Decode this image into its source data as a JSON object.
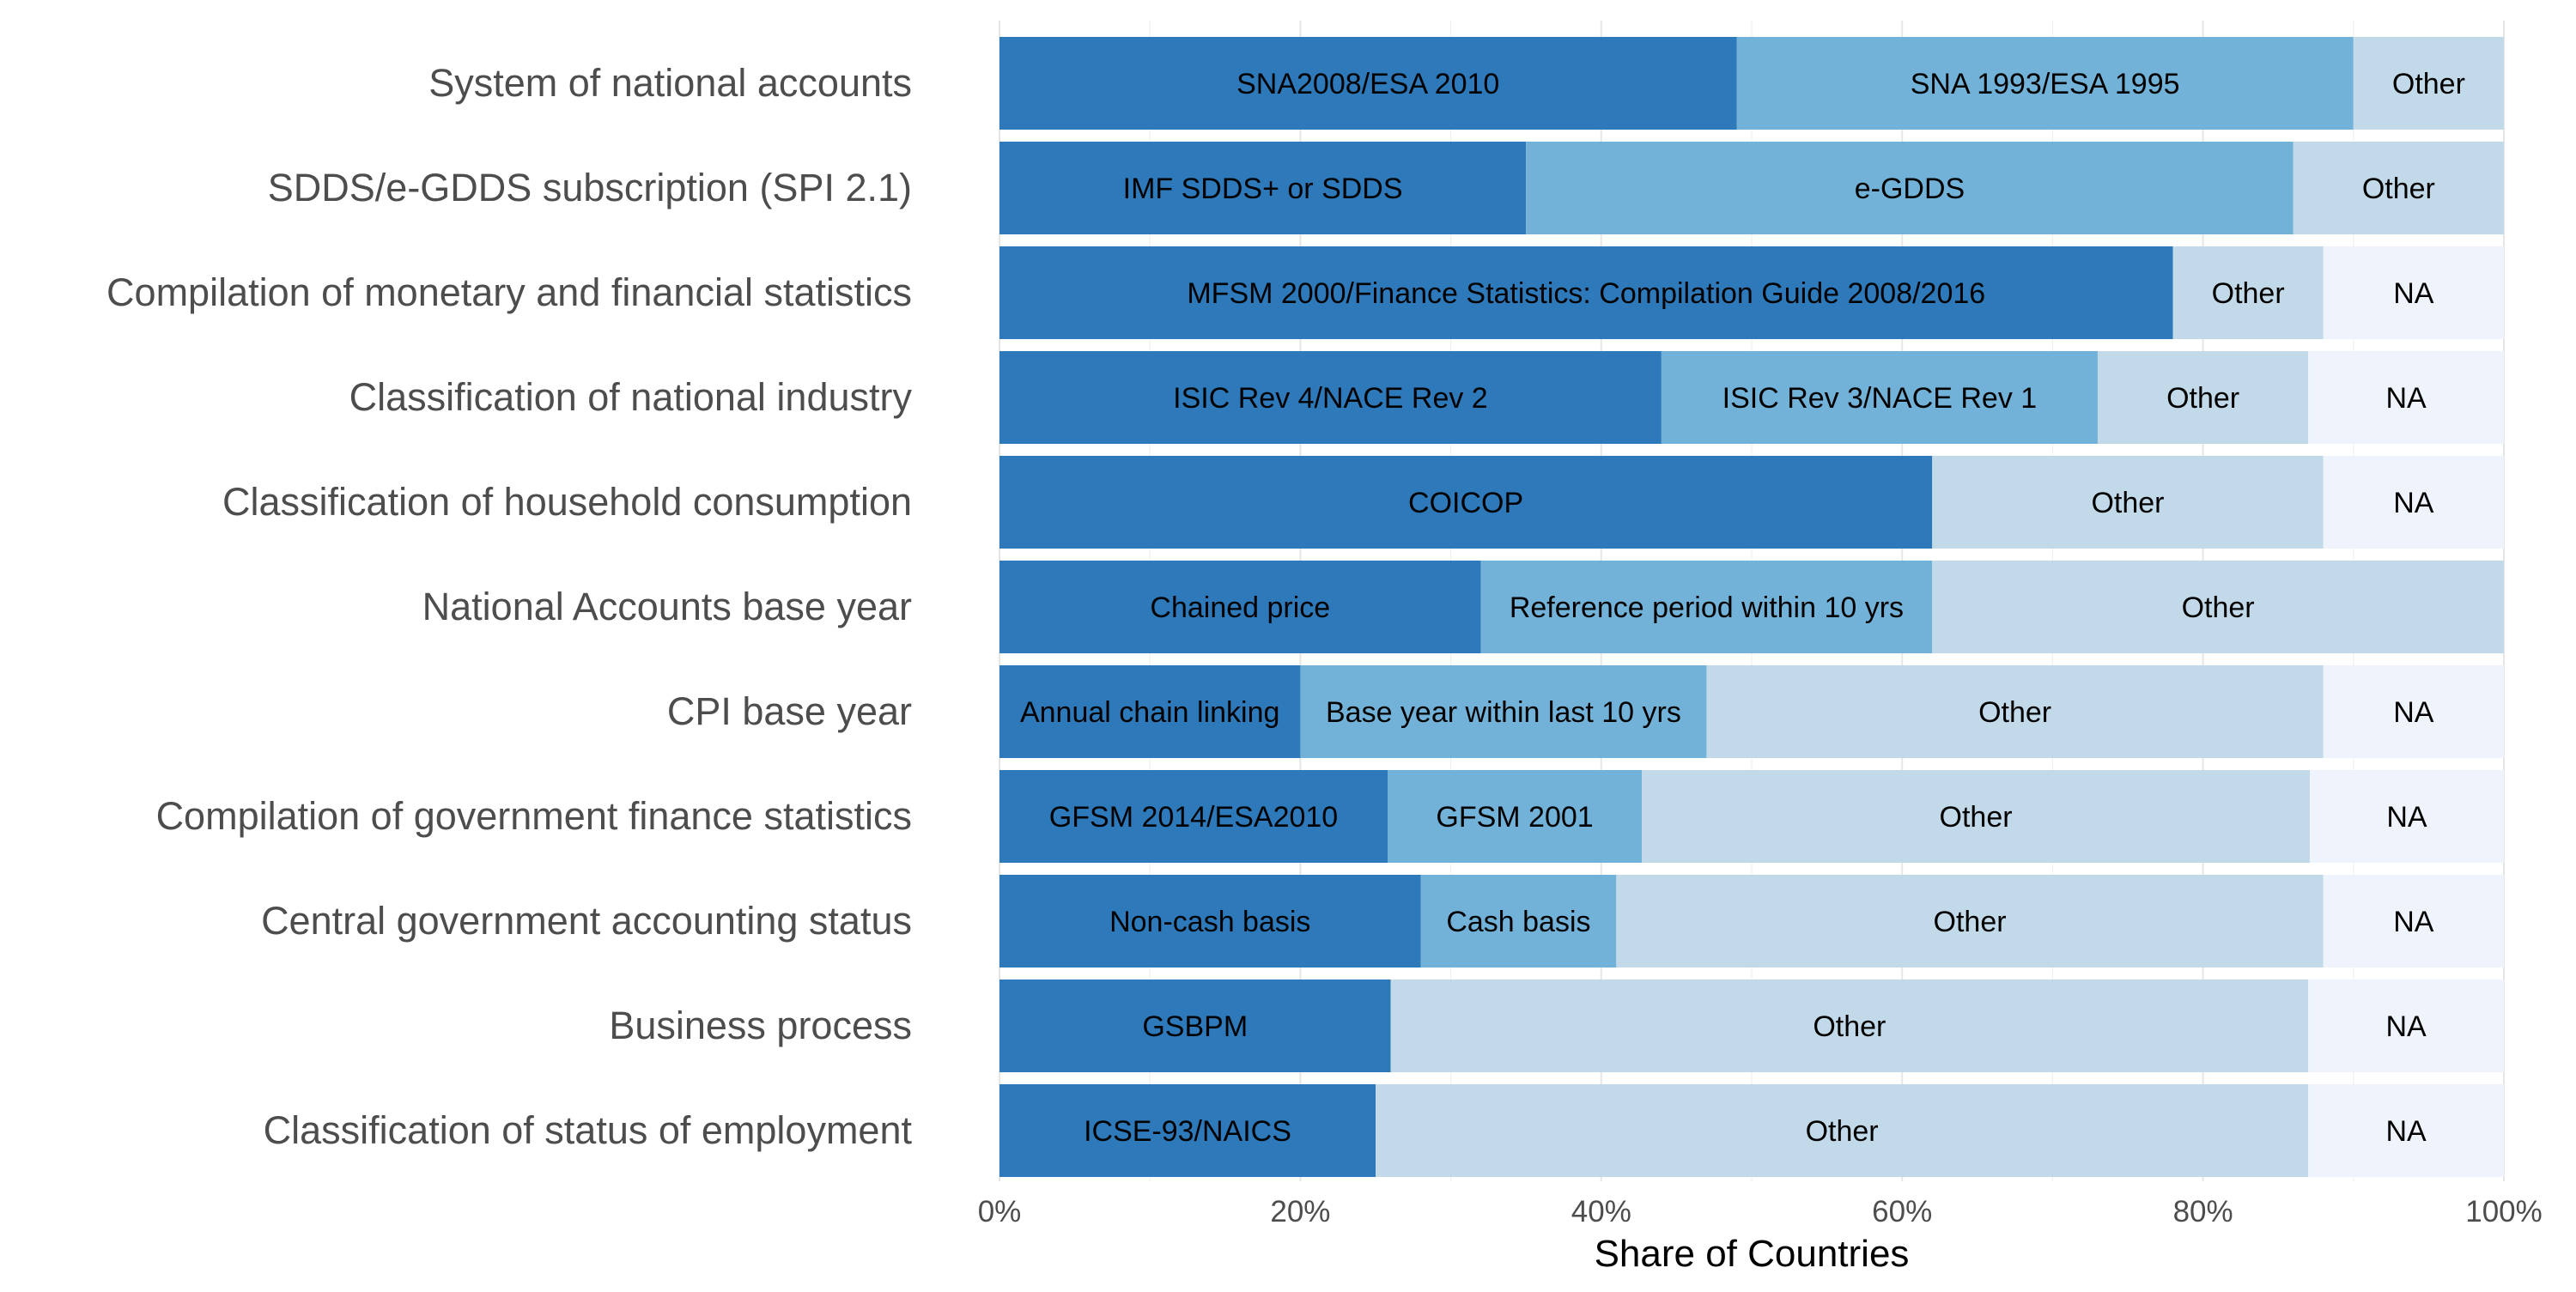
{
  "chart_data": {
    "type": "bar",
    "orientation": "horizontal",
    "stacked": true,
    "xlabel": "Share of Countries",
    "ylabel": "",
    "xlim": [
      0,
      100
    ],
    "x_ticks": [
      0,
      20,
      40,
      60,
      80,
      100
    ],
    "x_tick_labels": [
      "0%",
      "20%",
      "40%",
      "60%",
      "80%",
      "100%"
    ],
    "grid": true,
    "legend": "none",
    "colors": {
      "dark": "#2E79BA",
      "medium": "#73B2D8",
      "light": "#C1D9E8",
      "na": "#EFF3FB",
      "grid": "#E6E6E6",
      "category_label": "#4D4D4D",
      "tick_label": "#4D4D4D",
      "axis_title": "#000000",
      "segment_text": "#000000"
    },
    "categories": [
      "System of national accounts",
      "SDDS/e-GDDS subscription (SPI 2.1)",
      "Compilation of monetary and financial statistics",
      "Classification of national industry",
      "Classification of household consumption",
      "National Accounts base year",
      "CPI base year",
      "Compilation of government finance statistics",
      "Central government accounting status",
      "Business process",
      "Classification of status of employment"
    ],
    "bars": [
      {
        "category": "System of national accounts",
        "segments": [
          {
            "label": "SNA2008/ESA 2010",
            "value": 49.0,
            "tone": "dark"
          },
          {
            "label": "SNA 1993/ESA 1995",
            "value": 41.0,
            "tone": "medium"
          },
          {
            "label": "Other",
            "value": 10.0,
            "tone": "light"
          }
        ]
      },
      {
        "category": "SDDS/e-GDDS subscription (SPI 2.1)",
        "segments": [
          {
            "label": "IMF SDDS+ or SDDS",
            "value": 35.0,
            "tone": "dark"
          },
          {
            "label": "e-GDDS",
            "value": 51.0,
            "tone": "medium"
          },
          {
            "label": "Other",
            "value": 14.0,
            "tone": "light"
          }
        ]
      },
      {
        "category": "Compilation of monetary and financial statistics",
        "segments": [
          {
            "label": "MFSM 2000/Finance Statistics: Compilation Guide 2008/2016",
            "value": 78.0,
            "tone": "dark"
          },
          {
            "label": "Other",
            "value": 10.0,
            "tone": "light"
          },
          {
            "label": "NA",
            "value": 12.0,
            "tone": "na"
          }
        ]
      },
      {
        "category": "Classification of national industry",
        "segments": [
          {
            "label": "ISIC Rev 4/NACE Rev 2",
            "value": 44.0,
            "tone": "dark"
          },
          {
            "label": "ISIC Rev 3/NACE Rev 1",
            "value": 29.0,
            "tone": "medium"
          },
          {
            "label": "Other",
            "value": 14.0,
            "tone": "light"
          },
          {
            "label": "NA",
            "value": 13.0,
            "tone": "na"
          }
        ]
      },
      {
        "category": "Classification of household consumption",
        "segments": [
          {
            "label": "COICOP",
            "value": 62.0,
            "tone": "dark"
          },
          {
            "label": "Other",
            "value": 26.0,
            "tone": "light"
          },
          {
            "label": "NA",
            "value": 12.0,
            "tone": "na"
          }
        ]
      },
      {
        "category": "National Accounts base year",
        "segments": [
          {
            "label": "Chained price",
            "value": 32.0,
            "tone": "dark"
          },
          {
            "label": "Reference period within 10 yrs",
            "value": 30.0,
            "tone": "medium"
          },
          {
            "label": "Other",
            "value": 38.0,
            "tone": "light"
          }
        ]
      },
      {
        "category": "CPI base year",
        "segments": [
          {
            "label": "Annual chain linking",
            "value": 20.0,
            "tone": "dark"
          },
          {
            "label": "Base year within last 10 yrs",
            "value": 27.0,
            "tone": "medium"
          },
          {
            "label": "Other",
            "value": 41.0,
            "tone": "light"
          },
          {
            "label": "NA",
            "value": 12.0,
            "tone": "na"
          }
        ]
      },
      {
        "category": "Compilation of government finance statistics",
        "segments": [
          {
            "label": "GFSM 2014/ESA2010",
            "value": 25.8,
            "tone": "dark"
          },
          {
            "label": "GFSM 2001",
            "value": 16.9,
            "tone": "medium"
          },
          {
            "label": "Other",
            "value": 44.4,
            "tone": "light"
          },
          {
            "label": "NA",
            "value": 12.9,
            "tone": "na"
          }
        ]
      },
      {
        "category": "Central government accounting status",
        "segments": [
          {
            "label": "Non-cash basis",
            "value": 28.0,
            "tone": "dark"
          },
          {
            "label": "Cash basis",
            "value": 13.0,
            "tone": "medium"
          },
          {
            "label": "Other",
            "value": 47.0,
            "tone": "light"
          },
          {
            "label": "NA",
            "value": 12.0,
            "tone": "na"
          }
        ]
      },
      {
        "category": "Business process",
        "segments": [
          {
            "label": "GSBPM",
            "value": 26.0,
            "tone": "dark"
          },
          {
            "label": "Other",
            "value": 61.0,
            "tone": "light"
          },
          {
            "label": "NA",
            "value": 13.0,
            "tone": "na"
          }
        ]
      },
      {
        "category": "Classification of status of employment",
        "segments": [
          {
            "label": "ICSE-93/NAICS",
            "value": 25.0,
            "tone": "dark"
          },
          {
            "label": "Other",
            "value": 62.0,
            "tone": "light"
          },
          {
            "label": "NA",
            "value": 13.0,
            "tone": "na"
          }
        ]
      }
    ]
  }
}
